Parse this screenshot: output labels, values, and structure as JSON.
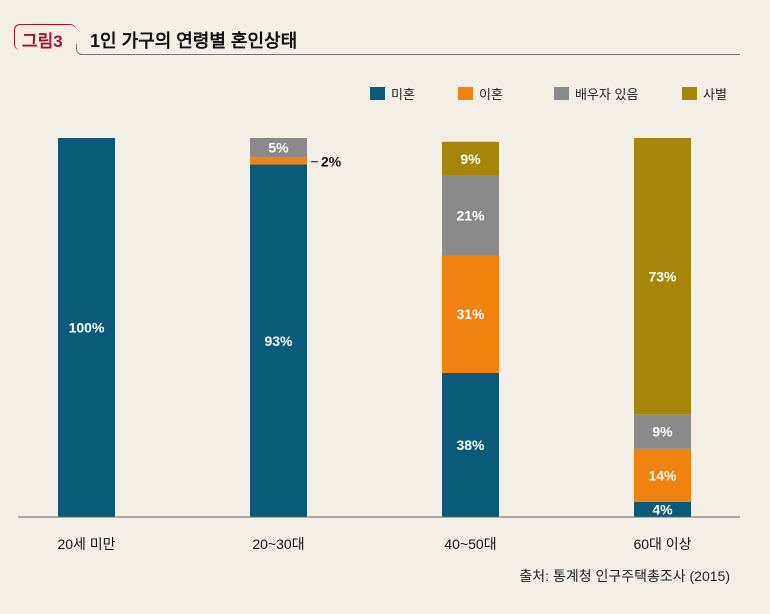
{
  "header": {
    "badge": "그림3",
    "title": "1인 가구의 연령별 혼인상태"
  },
  "source": "출처: 통계청 인구주택총조사 (2015)",
  "chart_data": {
    "type": "bar",
    "stacked": true,
    "categories": [
      "20세 미만",
      "20~30대",
      "40~50대",
      "60대 이상"
    ],
    "series": [
      {
        "name": "미혼",
        "color": "#0a5a7a",
        "values": [
          100,
          93,
          38,
          4
        ]
      },
      {
        "name": "이혼",
        "color": "#f0820f",
        "values": [
          0,
          2,
          31,
          14
        ]
      },
      {
        "name": "배우자 있음",
        "color": "#8a8a8a",
        "values": [
          0,
          5,
          21,
          9
        ]
      },
      {
        "name": "사별",
        "color": "#a5860a",
        "values": [
          0,
          0,
          9,
          73
        ]
      }
    ],
    "data_labels": [
      [
        "100%",
        "",
        "",
        ""
      ],
      [
        "93%",
        "2%",
        "5%",
        ""
      ],
      [
        "38%",
        "31%",
        "21%",
        "9%"
      ],
      [
        "4%",
        "14%",
        "9%",
        "73%"
      ]
    ],
    "ylim": [
      0,
      100
    ],
    "legend_position": "top-right",
    "grid": false
  }
}
